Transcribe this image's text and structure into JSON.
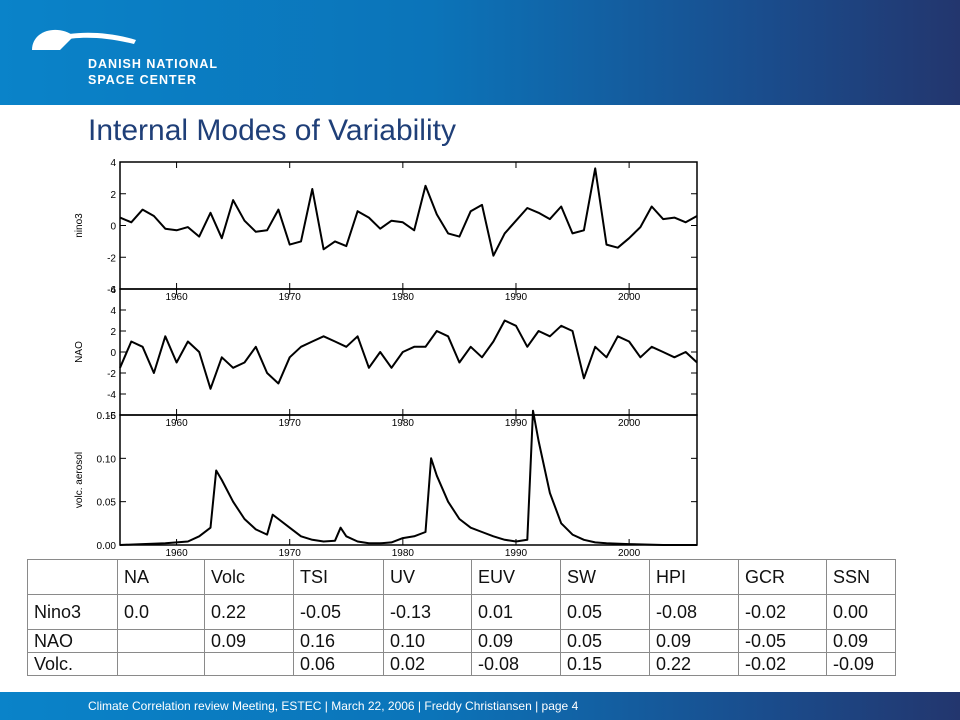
{
  "header": {
    "logo_line1": "DANISH NATIONAL",
    "logo_line2": "SPACE CENTER",
    "brand_color": "#0b78bf"
  },
  "slide": {
    "title": "Internal Modes of Variability"
  },
  "chart_data": [
    {
      "type": "line",
      "ylabel": "nino3",
      "ylim": [
        -4,
        4
      ],
      "yticks": [
        -4,
        -2,
        0,
        2,
        4
      ],
      "xlim": [
        1955,
        2006
      ],
      "xticks": [
        1960,
        1970,
        1980,
        1990,
        2000
      ],
      "series": [
        {
          "x": [
            1955,
            1956,
            1957,
            1958,
            1959,
            1960,
            1961,
            1962,
            1963,
            1964,
            1965,
            1966,
            1967,
            1968,
            1969,
            1970,
            1971,
            1972,
            1973,
            1974,
            1975,
            1976,
            1977,
            1978,
            1979,
            1980,
            1981,
            1982,
            1983,
            1984,
            1985,
            1986,
            1987,
            1988,
            1989,
            1990,
            1991,
            1992,
            1993,
            1994,
            1995,
            1996,
            1997,
            1998,
            1999,
            2000,
            2001,
            2002,
            2003,
            2004,
            2005,
            2006
          ],
          "values": [
            0.5,
            0.2,
            1.0,
            0.6,
            -0.2,
            -0.3,
            -0.1,
            -0.7,
            0.8,
            -0.8,
            1.6,
            0.3,
            -0.4,
            -0.3,
            1.0,
            -1.2,
            -1.0,
            2.3,
            -1.5,
            -1.0,
            -1.3,
            0.9,
            0.5,
            -0.2,
            0.3,
            0.2,
            -0.3,
            2.5,
            0.7,
            -0.5,
            -0.7,
            0.9,
            1.3,
            -1.9,
            -0.5,
            0.3,
            1.1,
            0.8,
            0.4,
            1.2,
            -0.5,
            -0.3,
            3.6,
            -1.2,
            -1.4,
            -0.8,
            -0.1,
            1.2,
            0.4,
            0.5,
            0.2,
            0.6
          ]
        }
      ]
    },
    {
      "type": "line",
      "ylabel": "NAO",
      "ylim": [
        -6,
        6
      ],
      "yticks": [
        -6,
        -4,
        -2,
        0,
        2,
        4,
        6
      ],
      "xlim": [
        1955,
        2006
      ],
      "xticks": [
        1960,
        1970,
        1980,
        1990,
        2000
      ],
      "series": [
        {
          "x": [
            1955,
            1956,
            1957,
            1958,
            1959,
            1960,
            1961,
            1962,
            1963,
            1964,
            1965,
            1966,
            1967,
            1968,
            1969,
            1970,
            1971,
            1972,
            1973,
            1974,
            1975,
            1976,
            1977,
            1978,
            1979,
            1980,
            1981,
            1982,
            1983,
            1984,
            1985,
            1986,
            1987,
            1988,
            1989,
            1990,
            1991,
            1992,
            1993,
            1994,
            1995,
            1996,
            1997,
            1998,
            1999,
            2000,
            2001,
            2002,
            2003,
            2004,
            2005,
            2006
          ],
          "values": [
            -1.5,
            1.0,
            0.5,
            -2.0,
            1.5,
            -1.0,
            1.0,
            0.0,
            -3.5,
            -0.5,
            -1.5,
            -1.0,
            0.5,
            -2.0,
            -3.0,
            -0.5,
            0.5,
            1.0,
            1.5,
            1.0,
            0.5,
            1.5,
            -1.5,
            0.0,
            -1.5,
            0.0,
            0.5,
            0.5,
            2.0,
            1.5,
            -1.0,
            0.5,
            -0.5,
            1.0,
            3.0,
            2.5,
            0.5,
            2.0,
            1.5,
            2.5,
            2.0,
            -2.5,
            0.5,
            -0.5,
            1.5,
            1.0,
            -0.5,
            0.5,
            0.0,
            -0.5,
            0.0,
            -1.0
          ]
        }
      ]
    },
    {
      "type": "line",
      "ylabel": "volc. aerosol",
      "ylim": [
        0.0,
        0.15
      ],
      "yticks": [
        0.0,
        0.05,
        0.1,
        0.15
      ],
      "ytick_labels": [
        "0.00",
        "0.05",
        "0.10",
        "0.15"
      ],
      "xlim": [
        1955,
        2006
      ],
      "xticks": [
        1960,
        1970,
        1980,
        1990,
        2000
      ],
      "series": [
        {
          "x": [
            1955,
            1957,
            1959,
            1961,
            1962,
            1963,
            1963.5,
            1964,
            1965,
            1966,
            1967,
            1968,
            1968.5,
            1969,
            1970,
            1971,
            1972,
            1973,
            1974,
            1974.5,
            1975,
            1976,
            1977,
            1978,
            1979,
            1980,
            1981,
            1982,
            1982.5,
            1983,
            1984,
            1985,
            1986,
            1987,
            1988,
            1989,
            1990,
            1991,
            1991.5,
            1992,
            1993,
            1994,
            1995,
            1996,
            1997,
            1998,
            2000,
            2003,
            2006
          ],
          "values": [
            0.0,
            0.001,
            0.002,
            0.004,
            0.01,
            0.02,
            0.086,
            0.075,
            0.05,
            0.03,
            0.018,
            0.012,
            0.035,
            0.03,
            0.02,
            0.01,
            0.006,
            0.004,
            0.005,
            0.02,
            0.01,
            0.004,
            0.002,
            0.002,
            0.003,
            0.008,
            0.01,
            0.015,
            0.1,
            0.08,
            0.05,
            0.03,
            0.02,
            0.015,
            0.01,
            0.006,
            0.004,
            0.006,
            0.155,
            0.12,
            0.06,
            0.025,
            0.012,
            0.006,
            0.003,
            0.002,
            0.001,
            0.0,
            0.0
          ]
        }
      ]
    }
  ],
  "table": {
    "headers": [
      "",
      "NA",
      "Volc",
      "TSI",
      "UV",
      "EUV",
      "SW",
      "HPI",
      "GCR",
      "SSN"
    ],
    "rows": [
      [
        "Nino3",
        "0.0",
        "0.22",
        "-0.05",
        "-0.13",
        "0.01",
        "0.05",
        "-0.08",
        "-0.02",
        "0.00"
      ],
      [
        "NAO",
        "",
        "0.09",
        "0.16",
        "0.10",
        "0.09",
        "0.05",
        "0.09",
        "-0.05",
        "0.09"
      ],
      [
        "Volc.",
        "",
        "",
        "0.06",
        "0.02",
        "-0.08",
        "0.15",
        "0.22",
        "-0.02",
        "-0.09"
      ]
    ]
  },
  "footer": {
    "text": "Climate Correlation review Meeting, ESTEC | March 22, 2006 | Freddy Christiansen  | page 4"
  }
}
